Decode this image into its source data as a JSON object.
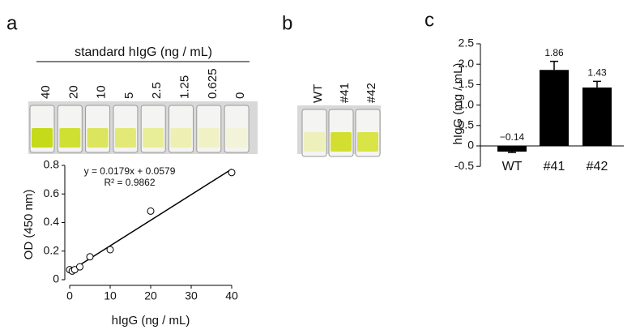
{
  "panel_labels": [
    "a",
    "b",
    "c"
  ],
  "wells_a": {
    "title": "standard hIgG (ng / mL)",
    "labels": [
      "40",
      "20",
      "10",
      "5",
      "2.5",
      "1.25",
      "0.625",
      "0"
    ]
  },
  "wells_b": {
    "labels": [
      "WT",
      "#41",
      "#42"
    ]
  },
  "chart_data": [
    {
      "type": "scatter",
      "x": [
        0,
        0.625,
        1.25,
        2.5,
        5,
        10,
        20,
        40
      ],
      "values": [
        0.07,
        0.06,
        0.07,
        0.09,
        0.16,
        0.21,
        0.48,
        0.75
      ],
      "fit": {
        "slope": 0.0179,
        "intercept": 0.0579
      },
      "annotations": [
        "y = 0.0179x + 0.0579",
        "R² = 0.9862"
      ],
      "xlabel": "hIgG (ng / mL)",
      "ylabel": "OD (450 nm)",
      "xlim": [
        0,
        40
      ],
      "xticks": [
        0,
        10,
        20,
        30,
        40
      ],
      "ylim": [
        0,
        0.8
      ],
      "yticks": [
        0,
        0.2,
        0.4,
        0.6,
        0.8
      ],
      "color": "#000000"
    },
    {
      "type": "bar",
      "categories": [
        "WT",
        "#41",
        "#42"
      ],
      "values": [
        -0.14,
        1.86,
        1.43
      ],
      "value_labels": [
        "−0.14",
        "1.86",
        "1.43"
      ],
      "errors": [
        0.02,
        0.21,
        0.15
      ],
      "ylabel": "hIgG (mg / mL)",
      "ylim": [
        -0.5,
        2.5
      ],
      "yticks": [
        -0.5,
        0,
        0.5,
        {
          "value": 1,
          "label": "1.0"
        },
        1.5,
        {
          "value": 2,
          "label": "2.0"
        },
        2.5
      ],
      "color": "#000000"
    }
  ]
}
